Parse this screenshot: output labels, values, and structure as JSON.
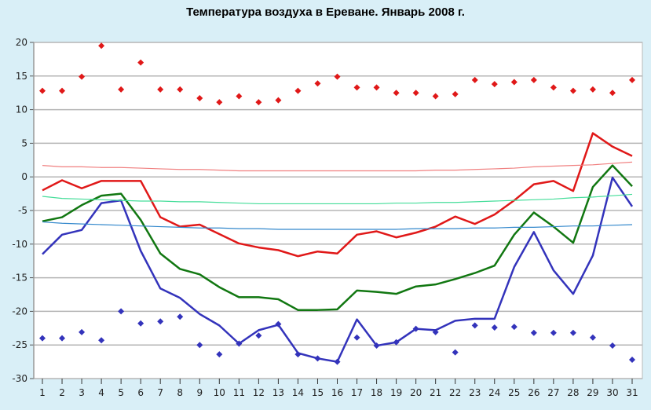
{
  "chart_data": {
    "type": "line",
    "title": "Температура воздуха в Ереване. Январь 2008 г.",
    "xlabel": "",
    "ylabel": "",
    "ylim": [
      -30,
      20
    ],
    "yticks": [
      20,
      15,
      10,
      5,
      0,
      -5,
      -10,
      -15,
      -20,
      -25,
      -30
    ],
    "x": [
      1,
      2,
      3,
      4,
      5,
      6,
      7,
      8,
      9,
      10,
      11,
      12,
      13,
      14,
      15,
      16,
      17,
      18,
      19,
      20,
      21,
      22,
      23,
      24,
      25,
      26,
      27,
      28,
      29,
      30,
      31
    ],
    "grid": true,
    "series": [
      {
        "kind": "line",
        "color": "#e01818",
        "width": 2.5,
        "values": [
          -2,
          -0.5,
          -1.7,
          -0.6,
          -0.6,
          -0.6,
          -6,
          -7.4,
          -7.1,
          -8.5,
          -9.9,
          -10.5,
          -10.9,
          -11.8,
          -11.1,
          -11.4,
          -8.6,
          -8.1,
          -9,
          -8.3,
          -7.4,
          -5.9,
          -7,
          -5.6,
          -3.5,
          -1.1,
          -0.6,
          -2.1,
          6.5,
          4.5,
          3.1
        ]
      },
      {
        "kind": "line",
        "color": "#117711",
        "width": 2.5,
        "values": [
          -6.6,
          -6,
          -4.2,
          -2.8,
          -2.5,
          -6.4,
          -11.4,
          -13.7,
          -14.5,
          -16.4,
          -17.9,
          -17.9,
          -18.2,
          -19.8,
          -19.8,
          -19.7,
          -16.9,
          -17.1,
          -17.4,
          -16.3,
          -16,
          -15.2,
          -14.3,
          -13.2,
          -8.6,
          -5.3,
          -7.4,
          -9.8,
          -1.5,
          1.7,
          -1.4
        ]
      },
      {
        "kind": "line",
        "color": "#3333bb",
        "width": 2.5,
        "values": [
          -11.5,
          -8.6,
          -7.9,
          -3.9,
          -3.5,
          -11,
          -16.6,
          -18,
          -20.4,
          -22.1,
          -24.8,
          -22.8,
          -22,
          -26.2,
          -27,
          -27.5,
          -21.2,
          -25.1,
          -24.6,
          -22.6,
          -22.8,
          -21.4,
          -21.1,
          -21.1,
          -13.4,
          -8.2,
          -13.9,
          -17.4,
          -11.7,
          -0.1,
          -4.4
        ]
      },
      {
        "kind": "line",
        "color": "#f08080",
        "width": 1.2,
        "values": [
          1.7,
          1.5,
          1.5,
          1.4,
          1.4,
          1.3,
          1.2,
          1.1,
          1.1,
          1.0,
          0.9,
          0.9,
          0.9,
          0.9,
          0.9,
          0.9,
          0.9,
          0.9,
          0.9,
          0.9,
          1.0,
          1.0,
          1.1,
          1.2,
          1.3,
          1.5,
          1.6,
          1.7,
          1.8,
          2.0,
          2.2
        ]
      },
      {
        "kind": "line",
        "color": "#44dd99",
        "width": 1.2,
        "values": [
          -2.9,
          -3.2,
          -3.3,
          -3.4,
          -3.5,
          -3.6,
          -3.6,
          -3.7,
          -3.7,
          -3.8,
          -3.9,
          -4.0,
          -4.0,
          -4.0,
          -4.0,
          -4.0,
          -4.0,
          -4.0,
          -3.9,
          -3.9,
          -3.8,
          -3.8,
          -3.7,
          -3.6,
          -3.5,
          -3.4,
          -3.3,
          -3.1,
          -3.0,
          -2.8,
          -2.6
        ]
      },
      {
        "kind": "line",
        "color": "#3388cc",
        "width": 1.2,
        "values": [
          -6.7,
          -6.9,
          -7.0,
          -7.1,
          -7.2,
          -7.3,
          -7.4,
          -7.5,
          -7.6,
          -7.6,
          -7.7,
          -7.7,
          -7.8,
          -7.8,
          -7.8,
          -7.8,
          -7.8,
          -7.8,
          -7.8,
          -7.7,
          -7.7,
          -7.7,
          -7.6,
          -7.6,
          -7.5,
          -7.5,
          -7.4,
          -7.3,
          -7.3,
          -7.2,
          -7.1
        ]
      },
      {
        "kind": "points",
        "color": "#e01818",
        "values": [
          12.8,
          12.8,
          14.9,
          19.5,
          13,
          17,
          13,
          13,
          11.7,
          11.1,
          12,
          11.1,
          11.4,
          12.8,
          13.9,
          14.9,
          13.3,
          13.3,
          12.5,
          12.5,
          12,
          12.3,
          14.4,
          13.8,
          14.1,
          14.4,
          13.3,
          12.8,
          13,
          12.5,
          14.4
        ]
      },
      {
        "kind": "points",
        "color": "#3333bb",
        "values": [
          -24,
          -24,
          -23.1,
          -24.3,
          -20,
          -21.8,
          -21.5,
          -20.8,
          -25,
          -26.4,
          -24.8,
          -23.6,
          -21.9,
          -26.4,
          -27,
          -27.5,
          -23.9,
          -25.1,
          -24.6,
          -22.6,
          -23.1,
          -26.1,
          -22.1,
          -22.4,
          -22.3,
          -23.2,
          -23.2,
          -23.2,
          -23.9,
          -25.1,
          -27.2
        ]
      }
    ]
  }
}
